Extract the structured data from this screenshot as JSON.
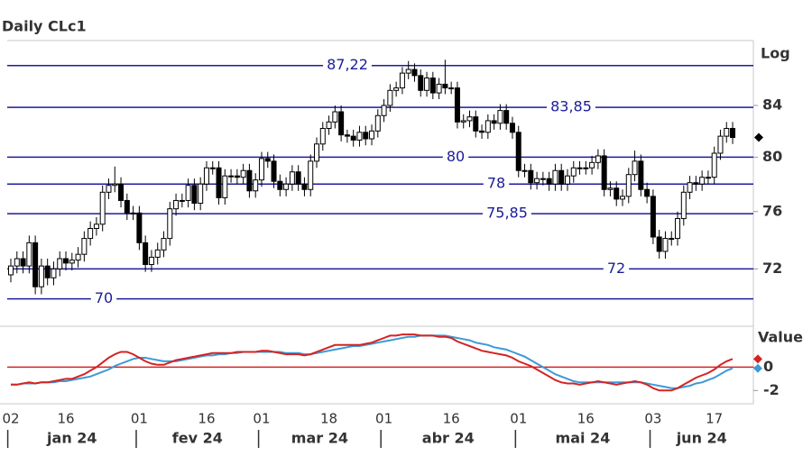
{
  "chart_data": [
    {
      "type": "candlestick",
      "title": "Daily CLc1",
      "scale_label": "Log",
      "log_scale": true,
      "categories": [
        "02",
        null,
        null,
        null,
        null,
        null,
        null,
        null,
        null,
        "16",
        null,
        null,
        null,
        null,
        null,
        null,
        null,
        null,
        null,
        null,
        null,
        "01",
        null,
        null,
        null,
        null,
        null,
        null,
        null,
        null,
        null,
        null,
        "16",
        null,
        null,
        null,
        null,
        null,
        null,
        null,
        null,
        "01",
        null,
        null,
        null,
        null,
        null,
        null,
        null,
        null,
        null,
        null,
        "18",
        null,
        null,
        null,
        null,
        null,
        null,
        null,
        null,
        "01",
        null,
        null,
        null,
        null,
        null,
        null,
        null,
        null,
        null,
        null,
        "16",
        null,
        null,
        null,
        null,
        null,
        null,
        null,
        null,
        null,
        null,
        "01",
        null,
        null,
        null,
        null,
        null,
        null,
        null,
        null,
        null,
        null,
        "16",
        null,
        null,
        null,
        null,
        null,
        null,
        null,
        null,
        null,
        null,
        "03",
        null,
        null,
        null,
        null,
        null,
        null,
        null,
        null,
        null,
        "17",
        null,
        null,
        null
      ],
      "months": [
        "jan 24",
        "fev 24",
        "mar 24",
        "abr 24",
        "mai 24",
        "jun 24"
      ],
      "open": [
        71.6,
        72.2,
        72.7,
        72.2,
        73.8,
        70.8,
        72.2,
        71.4,
        72.0,
        72.7,
        72.4,
        72.6,
        73.0,
        74.1,
        74.8,
        75.1,
        77.4,
        77.9,
        78.0,
        76.8,
        75.9,
        75.9,
        73.8,
        72.3,
        72.8,
        73.3,
        74.1,
        76.2,
        76.8,
        76.8,
        77.9,
        76.6,
        78.0,
        79.2,
        79.2,
        77.0,
        78.6,
        78.6,
        78.5,
        79.0,
        77.5,
        78.3,
        79.9,
        79.7,
        78.2,
        77.6,
        78.0,
        78.9,
        78.0,
        77.6,
        79.7,
        81.0,
        82.2,
        82.7,
        83.5,
        81.7,
        81.6,
        81.3,
        81.9,
        81.4,
        82.0,
        83.2,
        84.0,
        85.2,
        85.4,
        86.6,
        86.9,
        86.4,
        85.2,
        86.2,
        85.0,
        85.7,
        85.4,
        85.4,
        82.7,
        82.8,
        83.1,
        82.0,
        81.9,
        82.8,
        82.6,
        83.6,
        82.6,
        81.9,
        79.0,
        79.0,
        78.1,
        78.4,
        78.4,
        78.0,
        79.0,
        78.0,
        78.6,
        79.2,
        79.2,
        79.2,
        79.6,
        80.1,
        77.6,
        77.7,
        76.9,
        77.1,
        78.7,
        79.7,
        77.6,
        77.1,
        74.2,
        73.2,
        74.1,
        74.1,
        75.5,
        77.4,
        78.1,
        78.0,
        78.5,
        78.5,
        80.3,
        81.6,
        82.2
      ],
      "high": [
        72.7,
        73.2,
        73.2,
        74.3,
        74.3,
        72.7,
        72.7,
        72.5,
        73.2,
        73.2,
        73.1,
        73.5,
        74.6,
        75.3,
        75.6,
        77.9,
        78.4,
        79.3,
        78.5,
        77.3,
        76.4,
        76.4,
        74.3,
        73.3,
        73.8,
        74.6,
        76.7,
        77.3,
        77.3,
        78.4,
        78.4,
        78.5,
        79.7,
        79.7,
        79.7,
        79.1,
        79.1,
        79.1,
        79.5,
        79.5,
        78.8,
        80.4,
        80.4,
        80.2,
        78.7,
        78.5,
        79.4,
        79.4,
        78.5,
        80.2,
        81.5,
        82.7,
        83.2,
        84.0,
        84.0,
        82.1,
        82.1,
        82.4,
        82.4,
        82.5,
        83.7,
        84.5,
        85.7,
        85.9,
        87.1,
        87.6,
        87.4,
        86.9,
        86.7,
        86.7,
        86.2,
        87.7,
        85.9,
        85.9,
        83.3,
        83.6,
        83.6,
        82.5,
        83.3,
        83.3,
        84.1,
        84.1,
        83.1,
        82.4,
        79.5,
        79.5,
        78.9,
        78.9,
        78.9,
        79.5,
        79.5,
        79.1,
        79.7,
        79.7,
        79.7,
        80.1,
        80.6,
        80.6,
        78.2,
        78.2,
        77.6,
        79.2,
        80.5,
        80.2,
        78.1,
        77.6,
        74.7,
        74.6,
        74.6,
        76.0,
        77.9,
        78.6,
        78.6,
        79.0,
        79.0,
        80.8,
        82.1,
        82.7,
        82.7
      ],
      "low": [
        71.1,
        71.7,
        71.7,
        71.7,
        70.3,
        70.3,
        70.9,
        70.9,
        71.5,
        71.9,
        71.9,
        72.1,
        72.5,
        73.6,
        74.3,
        74.6,
        76.9,
        77.4,
        76.3,
        75.4,
        75.4,
        73.3,
        71.8,
        71.8,
        72.3,
        72.8,
        73.6,
        75.7,
        76.3,
        76.3,
        76.1,
        76.1,
        77.5,
        78.7,
        76.5,
        76.5,
        78.1,
        78.0,
        78.0,
        77.0,
        77.0,
        77.8,
        79.2,
        77.7,
        77.1,
        77.1,
        77.5,
        77.5,
        77.1,
        77.1,
        79.2,
        80.5,
        81.7,
        82.2,
        81.2,
        81.1,
        80.8,
        80.8,
        80.9,
        80.9,
        81.5,
        82.7,
        83.5,
        84.7,
        84.9,
        86.1,
        85.9,
        84.7,
        84.7,
        84.5,
        84.5,
        84.9,
        84.9,
        82.2,
        82.2,
        82.3,
        81.5,
        81.4,
        81.4,
        82.1,
        82.1,
        82.1,
        81.4,
        78.5,
        78.5,
        77.6,
        77.6,
        77.9,
        77.5,
        77.5,
        77.5,
        77.5,
        78.1,
        78.7,
        78.7,
        78.7,
        79.1,
        77.1,
        77.1,
        76.4,
        76.4,
        76.6,
        78.2,
        77.1,
        76.6,
        73.7,
        72.7,
        72.7,
        73.6,
        73.6,
        75.0,
        76.9,
        77.5,
        77.5,
        78.0,
        78.0,
        79.8,
        81.1,
        81.0
      ],
      "close": [
        72.2,
        72.7,
        72.2,
        73.8,
        70.8,
        72.2,
        71.4,
        72.0,
        72.7,
        72.4,
        72.6,
        73.0,
        74.1,
        74.8,
        75.1,
        77.4,
        77.9,
        78.0,
        76.8,
        75.9,
        75.9,
        73.8,
        72.3,
        72.8,
        73.3,
        74.1,
        76.2,
        76.8,
        76.8,
        77.9,
        76.6,
        78.0,
        79.2,
        79.2,
        77.0,
        78.6,
        78.6,
        78.5,
        79.0,
        77.5,
        78.3,
        79.9,
        79.7,
        78.2,
        77.6,
        78.0,
        78.9,
        78.0,
        77.6,
        79.7,
        81.0,
        82.2,
        82.7,
        83.5,
        81.7,
        81.6,
        81.3,
        81.9,
        81.4,
        82.0,
        83.2,
        84.0,
        85.2,
        85.4,
        86.6,
        86.9,
        86.4,
        85.2,
        86.2,
        85.0,
        85.7,
        85.4,
        85.4,
        82.7,
        82.8,
        83.1,
        82.0,
        81.9,
        82.8,
        82.6,
        83.6,
        82.6,
        81.9,
        79.0,
        79.0,
        78.1,
        78.4,
        78.4,
        78.0,
        79.0,
        78.0,
        78.6,
        79.2,
        79.2,
        79.2,
        79.6,
        80.1,
        77.6,
        77.7,
        76.9,
        77.1,
        78.7,
        79.7,
        77.6,
        77.1,
        74.2,
        73.2,
        74.1,
        74.1,
        75.5,
        77.4,
        78.1,
        78.0,
        78.5,
        78.5,
        80.3,
        81.6,
        82.2,
        81.5
      ],
      "up_color": "#ffffff",
      "down_color": "#000000",
      "ylim": [
        69.5,
        89.3
      ],
      "yticks": [
        72,
        76,
        80,
        84
      ],
      "levels": [
        {
          "value": 87.22,
          "label": "87,22"
        },
        {
          "value": 83.85,
          "label": "83,85"
        },
        80,
        78,
        {
          "value": 75.85,
          "label": "75,85"
        },
        72,
        70
      ],
      "level_color": "#1c1c9a"
    },
    {
      "type": "line",
      "axis_label": "Value",
      "series": [
        {
          "color": "#d62222",
          "values": [
            -1.5,
            -1.5,
            -1.4,
            -1.3,
            -1.4,
            -1.3,
            -1.3,
            -1.2,
            -1.1,
            -1.0,
            -1.0,
            -0.8,
            -0.6,
            -0.3,
            0.0,
            0.4,
            0.8,
            1.1,
            1.3,
            1.3,
            1.1,
            0.8,
            0.5,
            0.3,
            0.2,
            0.2,
            0.4,
            0.6,
            0.7,
            0.8,
            0.9,
            1.0,
            1.1,
            1.2,
            1.2,
            1.2,
            1.2,
            1.3,
            1.3,
            1.3,
            1.3,
            1.4,
            1.4,
            1.3,
            1.2,
            1.1,
            1.1,
            1.1,
            1.0,
            1.1,
            1.3,
            1.5,
            1.7,
            1.9,
            1.9,
            1.9,
            1.9,
            1.9,
            2.0,
            2.1,
            2.3,
            2.5,
            2.7,
            2.7,
            2.8,
            2.8,
            2.8,
            2.7,
            2.7,
            2.7,
            2.6,
            2.6,
            2.5,
            2.2,
            2.0,
            1.8,
            1.6,
            1.4,
            1.3,
            1.2,
            1.1,
            1.0,
            0.8,
            0.5,
            0.3,
            0.1,
            -0.2,
            -0.5,
            -0.8,
            -1.1,
            -1.3,
            -1.4,
            -1.4,
            -1.5,
            -1.4,
            -1.3,
            -1.2,
            -1.3,
            -1.4,
            -1.5,
            -1.4,
            -1.3,
            -1.2,
            -1.3,
            -1.5,
            -1.8,
            -2.0,
            -2.0,
            -2.0,
            -1.8,
            -1.5,
            -1.2,
            -0.9,
            -0.7,
            -0.5,
            -0.2,
            0.2,
            0.5,
            0.7
          ]
        },
        {
          "color": "#3c9ad8",
          "values": [
            -1.5,
            -1.5,
            -1.4,
            -1.4,
            -1.4,
            -1.3,
            -1.3,
            -1.3,
            -1.2,
            -1.2,
            -1.1,
            -1.0,
            -0.9,
            -0.8,
            -0.6,
            -0.4,
            -0.2,
            0.1,
            0.3,
            0.5,
            0.7,
            0.8,
            0.8,
            0.7,
            0.6,
            0.5,
            0.5,
            0.5,
            0.6,
            0.7,
            0.8,
            0.9,
            1.0,
            1.0,
            1.1,
            1.1,
            1.2,
            1.2,
            1.3,
            1.3,
            1.3,
            1.3,
            1.3,
            1.3,
            1.3,
            1.2,
            1.2,
            1.2,
            1.1,
            1.1,
            1.2,
            1.3,
            1.4,
            1.5,
            1.6,
            1.7,
            1.8,
            1.8,
            1.9,
            2.0,
            2.1,
            2.2,
            2.3,
            2.4,
            2.5,
            2.6,
            2.6,
            2.7,
            2.7,
            2.7,
            2.7,
            2.7,
            2.6,
            2.5,
            2.4,
            2.3,
            2.1,
            2.0,
            1.9,
            1.7,
            1.6,
            1.5,
            1.3,
            1.1,
            0.9,
            0.6,
            0.3,
            0.0,
            -0.3,
            -0.6,
            -0.8,
            -1.0,
            -1.2,
            -1.3,
            -1.3,
            -1.3,
            -1.3,
            -1.3,
            -1.3,
            -1.3,
            -1.3,
            -1.3,
            -1.3,
            -1.3,
            -1.4,
            -1.5,
            -1.6,
            -1.7,
            -1.8,
            -1.8,
            -1.7,
            -1.6,
            -1.4,
            -1.3,
            -1.1,
            -0.9,
            -0.6,
            -0.3,
            -0.1
          ]
        }
      ],
      "ylim": [
        -2.9,
        3.5
      ],
      "yticks": [
        0,
        -2
      ],
      "zero_line_color": "#d62222"
    }
  ]
}
